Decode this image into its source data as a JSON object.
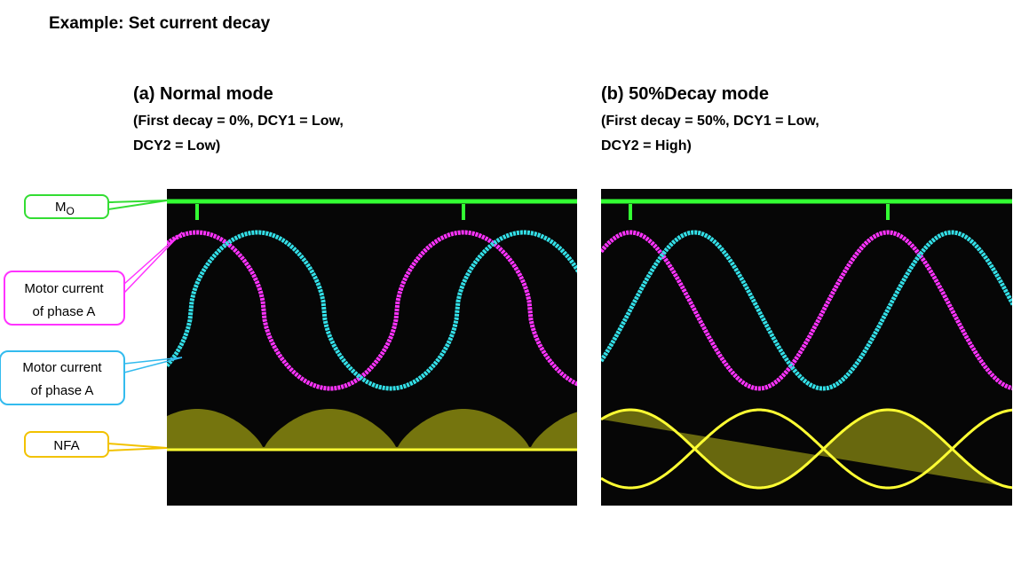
{
  "header": {
    "title": "Example: Set current decay"
  },
  "panels": [
    {
      "heading": "(a) Normal mode",
      "lines": [
        "(First decay = 0%, DCY1 = Low,",
        "DCY2 = Low)"
      ]
    },
    {
      "heading": "(b) 50%Decay mode",
      "lines": [
        "(First decay = 50%, DCY1 = Low,",
        "DCY2 = High)"
      ]
    }
  ],
  "callouts": [
    {
      "label": "M",
      "subscript": "O"
    },
    {
      "lines": [
        "Motor current",
        "of phase A"
      ]
    },
    {
      "lines": [
        "Motor current",
        "of phase A"
      ]
    },
    {
      "label": "NFA"
    }
  ]
}
